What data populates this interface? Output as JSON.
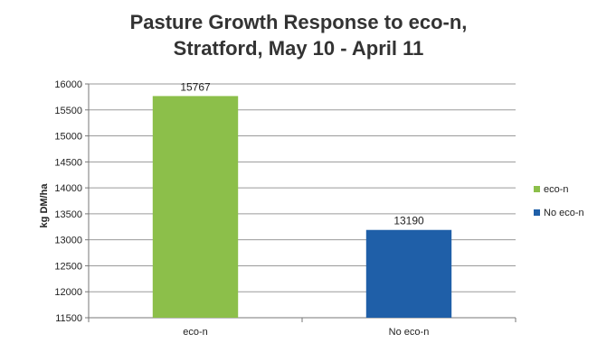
{
  "chart_data": {
    "type": "bar",
    "title_lines": [
      "Pasture Growth Response to eco-n,",
      "Stratford, May 10 - April 11"
    ],
    "ylabel": "kg DM/ha",
    "xlabel": "",
    "ylim": [
      11500,
      16000
    ],
    "yticks": [
      11500,
      12000,
      12500,
      13000,
      13500,
      14000,
      14500,
      15000,
      15500,
      16000
    ],
    "categories": [
      "eco-n",
      "No eco-n"
    ],
    "values": [
      15767,
      13190
    ],
    "colors": [
      "#8cbf4a",
      "#1f5fa8"
    ],
    "legend": {
      "position": "right",
      "entries": [
        "eco-n",
        "No eco-n"
      ]
    },
    "grid": true
  }
}
